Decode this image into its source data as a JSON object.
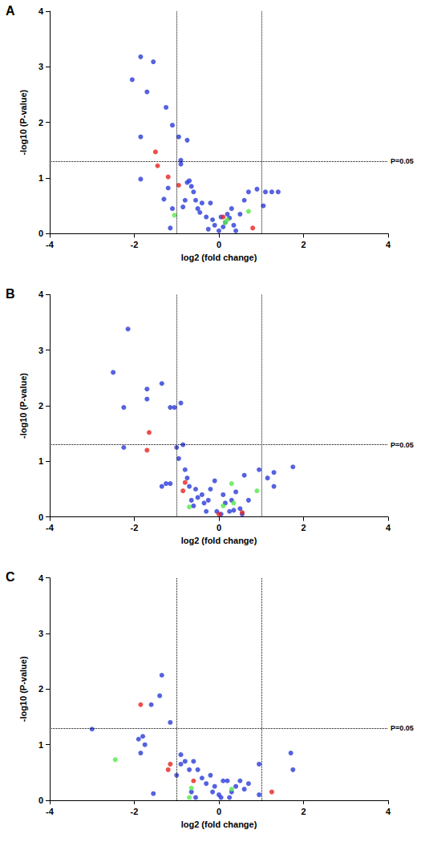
{
  "chart_data": [
    {
      "type": "scatter",
      "title": "A",
      "x_label": "log2 (fold change)",
      "y_label": "-log10 (P-value)",
      "xlim": [
        -4,
        4
      ],
      "ylim": [
        0,
        4
      ],
      "xticks": [
        -4,
        -2,
        0,
        2,
        4
      ],
      "yticks": [
        0,
        1,
        2,
        3,
        4
      ],
      "grid": false,
      "marker": "circle",
      "series": [
        {
          "color": "#2a3bd8",
          "x": [
            -1.85,
            -1.55,
            -2.05,
            -1.7,
            -1.25,
            -1.1,
            -1.85,
            -0.95,
            -0.75,
            -0.9,
            -0.9,
            -1.85,
            -1.2,
            -1.3,
            -1.1,
            -1.15,
            -0.75,
            -0.7,
            -0.65,
            -0.6,
            -0.55,
            -0.5,
            -0.45,
            -0.4,
            -0.3,
            -0.2,
            -0.15,
            -0.1,
            0,
            0.05,
            0.1,
            0.15,
            0.2,
            0.25,
            0.3,
            0.35,
            0.4,
            0.6,
            0.7,
            0.9,
            1.1,
            1.25,
            1.4,
            1.05,
            -0.25,
            0.5,
            -0.8,
            -0.85
          ],
          "y": [
            3.18,
            3.09,
            2.77,
            2.55,
            2.27,
            1.95,
            1.74,
            1.74,
            1.68,
            1.32,
            1.25,
            0.98,
            0.82,
            0.62,
            0.45,
            0.1,
            0.92,
            0.95,
            0.85,
            0.75,
            0.6,
            0.45,
            0.38,
            0.55,
            0.3,
            0.55,
            0.25,
            0.15,
            0.05,
            0.3,
            0.12,
            0.2,
            0.35,
            0.28,
            0.45,
            0.15,
            0.05,
            0.6,
            0.75,
            0.8,
            0.75,
            0.75,
            0.75,
            0.5,
            0.08,
            0.35,
            0.6,
            0.48
          ]
        },
        {
          "color": "#e8221e",
          "x": [
            -1.5,
            -1.45,
            -1.2,
            -0.95,
            0.1,
            0.8
          ],
          "y": [
            1.47,
            1.22,
            1.02,
            0.87,
            0.3,
            0.1
          ]
        },
        {
          "color": "#55e84a",
          "x": [
            -1.05,
            0.2,
            0.15,
            0.7
          ],
          "y": [
            0.33,
            0.25,
            0.2,
            0.4
          ]
        }
      ],
      "reference_lines": [
        {
          "axis": "x",
          "value": -1,
          "line_style": "dotted"
        },
        {
          "axis": "x",
          "value": 1,
          "line_style": "dotted"
        },
        {
          "axis": "y",
          "value": 1.3,
          "label": "P=0.05",
          "line_style": "dotted"
        }
      ]
    },
    {
      "type": "scatter",
      "title": "B",
      "x_label": "log2 (fold change)",
      "y_label": "-log10 (P-value)",
      "xlim": [
        -4,
        4
      ],
      "ylim": [
        0,
        4
      ],
      "xticks": [
        -4,
        -2,
        0,
        2,
        4
      ],
      "yticks": [
        0,
        1,
        2,
        3,
        4
      ],
      "grid": false,
      "marker": "circle",
      "series": [
        {
          "color": "#2a3bd8",
          "x": [
            -2.15,
            -2.5,
            -1.35,
            -1.7,
            -1.7,
            -2.25,
            -1.15,
            -1.05,
            -0.9,
            -2.25,
            -0.85,
            -1,
            -0.95,
            -1.35,
            -1.25,
            -1.15,
            -0.8,
            -0.75,
            -0.7,
            -0.65,
            -0.6,
            -0.55,
            -0.5,
            -0.4,
            -0.35,
            -0.25,
            -0.2,
            -0.1,
            -0.05,
            0.05,
            0.1,
            0.15,
            0.3,
            0.35,
            0.4,
            0.5,
            0.55,
            0.6,
            0.7,
            0.95,
            1.15,
            1.3,
            1.3,
            1.75,
            0.25,
            -0.3
          ],
          "y": [
            3.38,
            2.6,
            2.4,
            2.3,
            2.12,
            1.97,
            1.97,
            1.97,
            2.05,
            1.25,
            1.3,
            1.25,
            1.05,
            0.55,
            0.6,
            0.6,
            0.85,
            0.7,
            0.55,
            0.3,
            0.2,
            0.5,
            0.35,
            0.4,
            0.25,
            0.3,
            0.5,
            0.65,
            0.1,
            0.05,
            0.4,
            0.25,
            0.3,
            0.12,
            0.45,
            0.15,
            0.05,
            0.75,
            0.3,
            0.85,
            0.7,
            0.8,
            0.55,
            0.9,
            0.1,
            0.1
          ]
        },
        {
          "color": "#e8221e",
          "x": [
            -1.65,
            -1.7,
            -0.8,
            -0.85,
            0,
            0.55
          ],
          "y": [
            1.52,
            1.2,
            0.62,
            0.47,
            0.05,
            0.08
          ]
        },
        {
          "color": "#55e84a",
          "x": [
            -0.7,
            0.1,
            0.3,
            0.35,
            0.9
          ],
          "y": [
            0.18,
            0.2,
            0.6,
            0.25,
            0.47
          ]
        }
      ],
      "reference_lines": [
        {
          "axis": "x",
          "value": -1,
          "line_style": "dotted"
        },
        {
          "axis": "x",
          "value": 1,
          "line_style": "dotted"
        },
        {
          "axis": "y",
          "value": 1.3,
          "label": "P=0.05",
          "line_style": "dotted"
        }
      ]
    },
    {
      "type": "scatter",
      "title": "C",
      "x_label": "log2 (fold change)",
      "y_label": "-log10 (P-value)",
      "xlim": [
        -4,
        4
      ],
      "ylim": [
        0,
        4
      ],
      "xticks": [
        -4,
        -2,
        0,
        2,
        4
      ],
      "yticks": [
        0,
        1,
        2,
        3,
        4
      ],
      "grid": false,
      "marker": "circle",
      "series": [
        {
          "color": "#2a3bd8",
          "x": [
            -1.35,
            -1.4,
            -1.6,
            -3,
            -1.15,
            -1.8,
            -1.9,
            -1.75,
            -1.85,
            -1.55,
            -0.9,
            -0.9,
            -1,
            -0.8,
            -0.7,
            -0.6,
            -0.5,
            -0.4,
            -0.3,
            -0.2,
            -0.1,
            0,
            0.05,
            0.1,
            0.2,
            0.3,
            0.4,
            0.5,
            0.6,
            0.7,
            0.95,
            0.95,
            1.7,
            1.75,
            -0.15,
            0.25,
            -0.65,
            -0.55
          ],
          "y": [
            2.25,
            1.88,
            1.72,
            1.28,
            1.4,
            1.15,
            1.1,
            1,
            0.85,
            0.12,
            0.82,
            0.65,
            0.45,
            0.7,
            0.55,
            0.7,
            0.55,
            0.4,
            0.3,
            0.45,
            0.25,
            0.1,
            0.05,
            0.35,
            0.35,
            0.15,
            0.25,
            0.35,
            0.2,
            0.3,
            0.65,
            0.1,
            0.85,
            0.55,
            0.15,
            0.05,
            0.15,
            0.05
          ]
        },
        {
          "color": "#e8221e",
          "x": [
            -1.85,
            -1.15,
            -1.2,
            -0.6,
            1.25
          ],
          "y": [
            1.72,
            0.65,
            0.55,
            0.35,
            0.15
          ]
        },
        {
          "color": "#55e84a",
          "x": [
            -2.45,
            -0.65,
            -0.7,
            0.3
          ],
          "y": [
            0.73,
            0.22,
            0.05,
            0.2
          ]
        }
      ],
      "reference_lines": [
        {
          "axis": "x",
          "value": -1,
          "line_style": "dotted"
        },
        {
          "axis": "x",
          "value": 1,
          "line_style": "dotted"
        },
        {
          "axis": "y",
          "value": 1.3,
          "label": "P=0.05",
          "line_style": "dotted"
        }
      ]
    }
  ]
}
